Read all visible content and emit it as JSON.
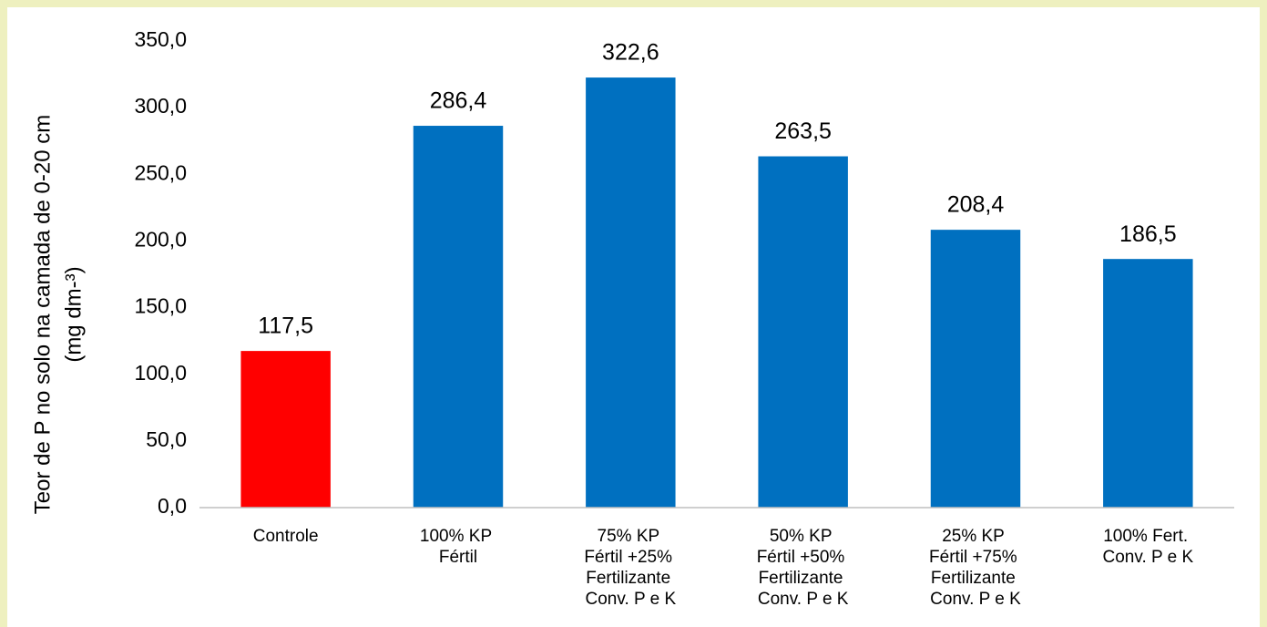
{
  "chart_data": {
    "type": "bar",
    "y_label": [
      "Teor de P no solo na camada de 0-20 cm",
      "(mg dm-³)"
    ],
    "categories": [
      "Controle",
      "100% KP Fértil",
      "75% KP Fértil +25% Fertilizante Conv. P e K",
      "50% KP Fértil +50% Fertilizante Conv. P e K",
      "25% KP Fértil +75% Fertilizante Conv. P e K",
      "100% Fert. Conv. P e K"
    ],
    "values": [
      117.5,
      286.4,
      322.6,
      263.5,
      208.4,
      186.5
    ],
    "value_labels": [
      "117,5",
      "286,4",
      "322,6",
      "263,5",
      "208,4",
      "186,5"
    ],
    "colors": [
      "#ff0000",
      "#0070c0",
      "#0070c0",
      "#0070c0",
      "#0070c0",
      "#0070c0"
    ],
    "ylim": [
      0,
      350
    ],
    "yticks": [
      {
        "value": 0,
        "label": "0,0"
      },
      {
        "value": 50,
        "label": "50,0"
      },
      {
        "value": 100,
        "label": "100,0"
      },
      {
        "value": 150,
        "label": "150,0"
      },
      {
        "value": 200,
        "label": "200,0"
      },
      {
        "value": 250,
        "label": "250,0"
      },
      {
        "value": 300,
        "label": "300,0"
      },
      {
        "value": 350,
        "label": "350,0"
      }
    ],
    "grid": false
  }
}
